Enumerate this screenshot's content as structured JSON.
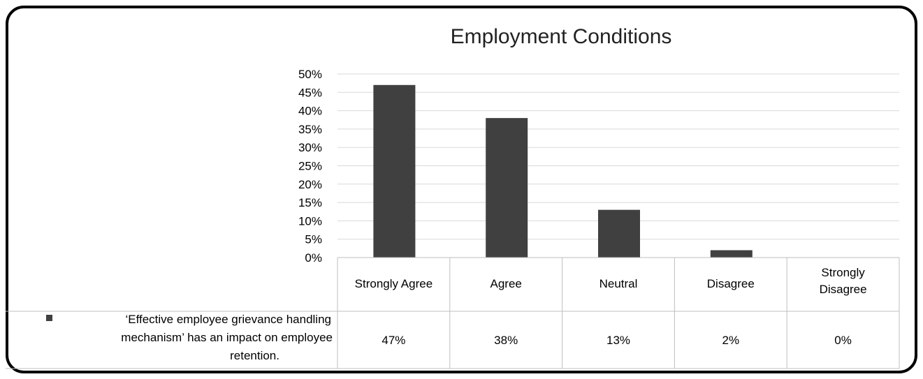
{
  "chart_data": {
    "type": "bar",
    "title": "Employment Conditions",
    "categories": [
      "Strongly Agree",
      "Agree",
      "Neutral",
      "Disagree",
      "Strongly Disagree"
    ],
    "series": [
      {
        "name": "‘Effective employee grievance handling mechanism’ has an impact on employee retention.",
        "values": [
          47,
          38,
          13,
          2,
          0
        ],
        "labels": [
          "47%",
          "38%",
          "13%",
          "2%",
          "0%"
        ]
      }
    ],
    "y_ticks": [
      "0%",
      "5%",
      "10%",
      "15%",
      "20%",
      "25%",
      "30%",
      "35%",
      "40%",
      "45%",
      "50%"
    ],
    "ylim": [
      0,
      50
    ],
    "grid": true,
    "legend": "data-table",
    "colors": {
      "bar": "#404040",
      "grid": "#d9d9d9",
      "table_border": "#bfbfbf"
    }
  }
}
